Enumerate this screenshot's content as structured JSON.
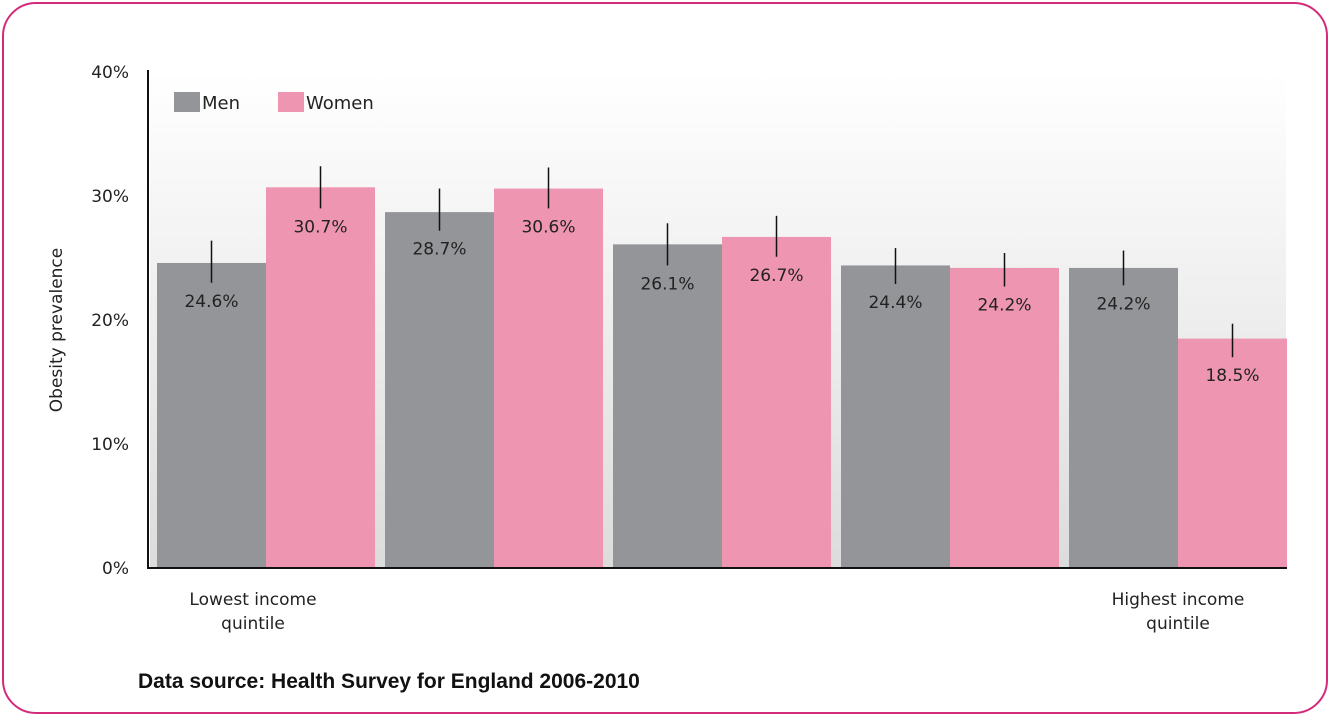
{
  "chart_data": {
    "type": "bar",
    "ylabel": "Obesity prevalence",
    "ylim": [
      0,
      40
    ],
    "yticks": [
      "0%",
      "10%",
      "20%",
      "30%",
      "40%"
    ],
    "categories": [
      "1",
      "2",
      "3",
      "4",
      "5"
    ],
    "x_edge_labels": {
      "lowest": "Lowest income quintile",
      "highest": "Highest income quintile"
    },
    "series": [
      {
        "name": "Men",
        "color": "#939598",
        "values": [
          24.6,
          28.7,
          26.1,
          24.4,
          24.2
        ],
        "labels": [
          "24.6%",
          "28.7%",
          "26.1%",
          "24.4%",
          "24.2%"
        ],
        "ci_low": [
          23.0,
          27.2,
          24.4,
          22.9,
          22.8
        ],
        "ci_high": [
          26.4,
          30.6,
          27.8,
          25.8,
          25.6
        ]
      },
      {
        "name": "Women",
        "color": "#ee95b1",
        "values": [
          30.7,
          30.6,
          26.7,
          24.2,
          18.5
        ],
        "labels": [
          "30.7%",
          "30.6%",
          "26.7%",
          "24.2%",
          "18.5%"
        ],
        "ci_low": [
          29.0,
          29.0,
          25.1,
          22.7,
          17.0
        ],
        "ci_high": [
          32.4,
          32.3,
          28.4,
          25.4,
          19.7
        ]
      }
    ],
    "grid": false,
    "legend": "top-left"
  },
  "footer": {
    "source": "Data source: Health Survey for England 2006-2010"
  }
}
